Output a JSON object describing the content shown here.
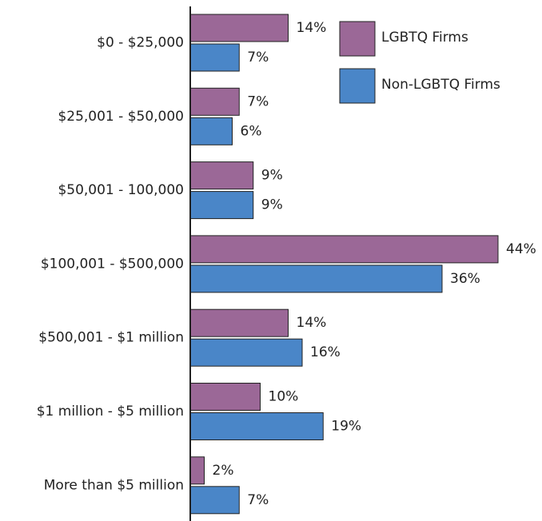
{
  "chart_data": {
    "type": "hbar",
    "categories": [
      "$0 - $25,000",
      "$25,001 - $50,000",
      "$50,001 - 100,000",
      "$100,001 - $500,000",
      "$500,001 - $1 million",
      "$1 million - $5 million",
      "More than $5 million"
    ],
    "series": [
      {
        "name": "LGBTQ Firms",
        "color": "#9b6897",
        "values": [
          14,
          7,
          9,
          44,
          14,
          10,
          2
        ],
        "value_labels": [
          "14%",
          "7%",
          "9%",
          "44%",
          "14%",
          "10%",
          "2%"
        ]
      },
      {
        "name": "Non-LGBTQ Firms",
        "color": "#4a86c8",
        "values": [
          7,
          6,
          9,
          36,
          16,
          19,
          7
        ],
        "value_labels": [
          "7%",
          "6%",
          "9%",
          "36%",
          "16%",
          "19%",
          "7%"
        ]
      }
    ],
    "legend": "upper right"
  }
}
